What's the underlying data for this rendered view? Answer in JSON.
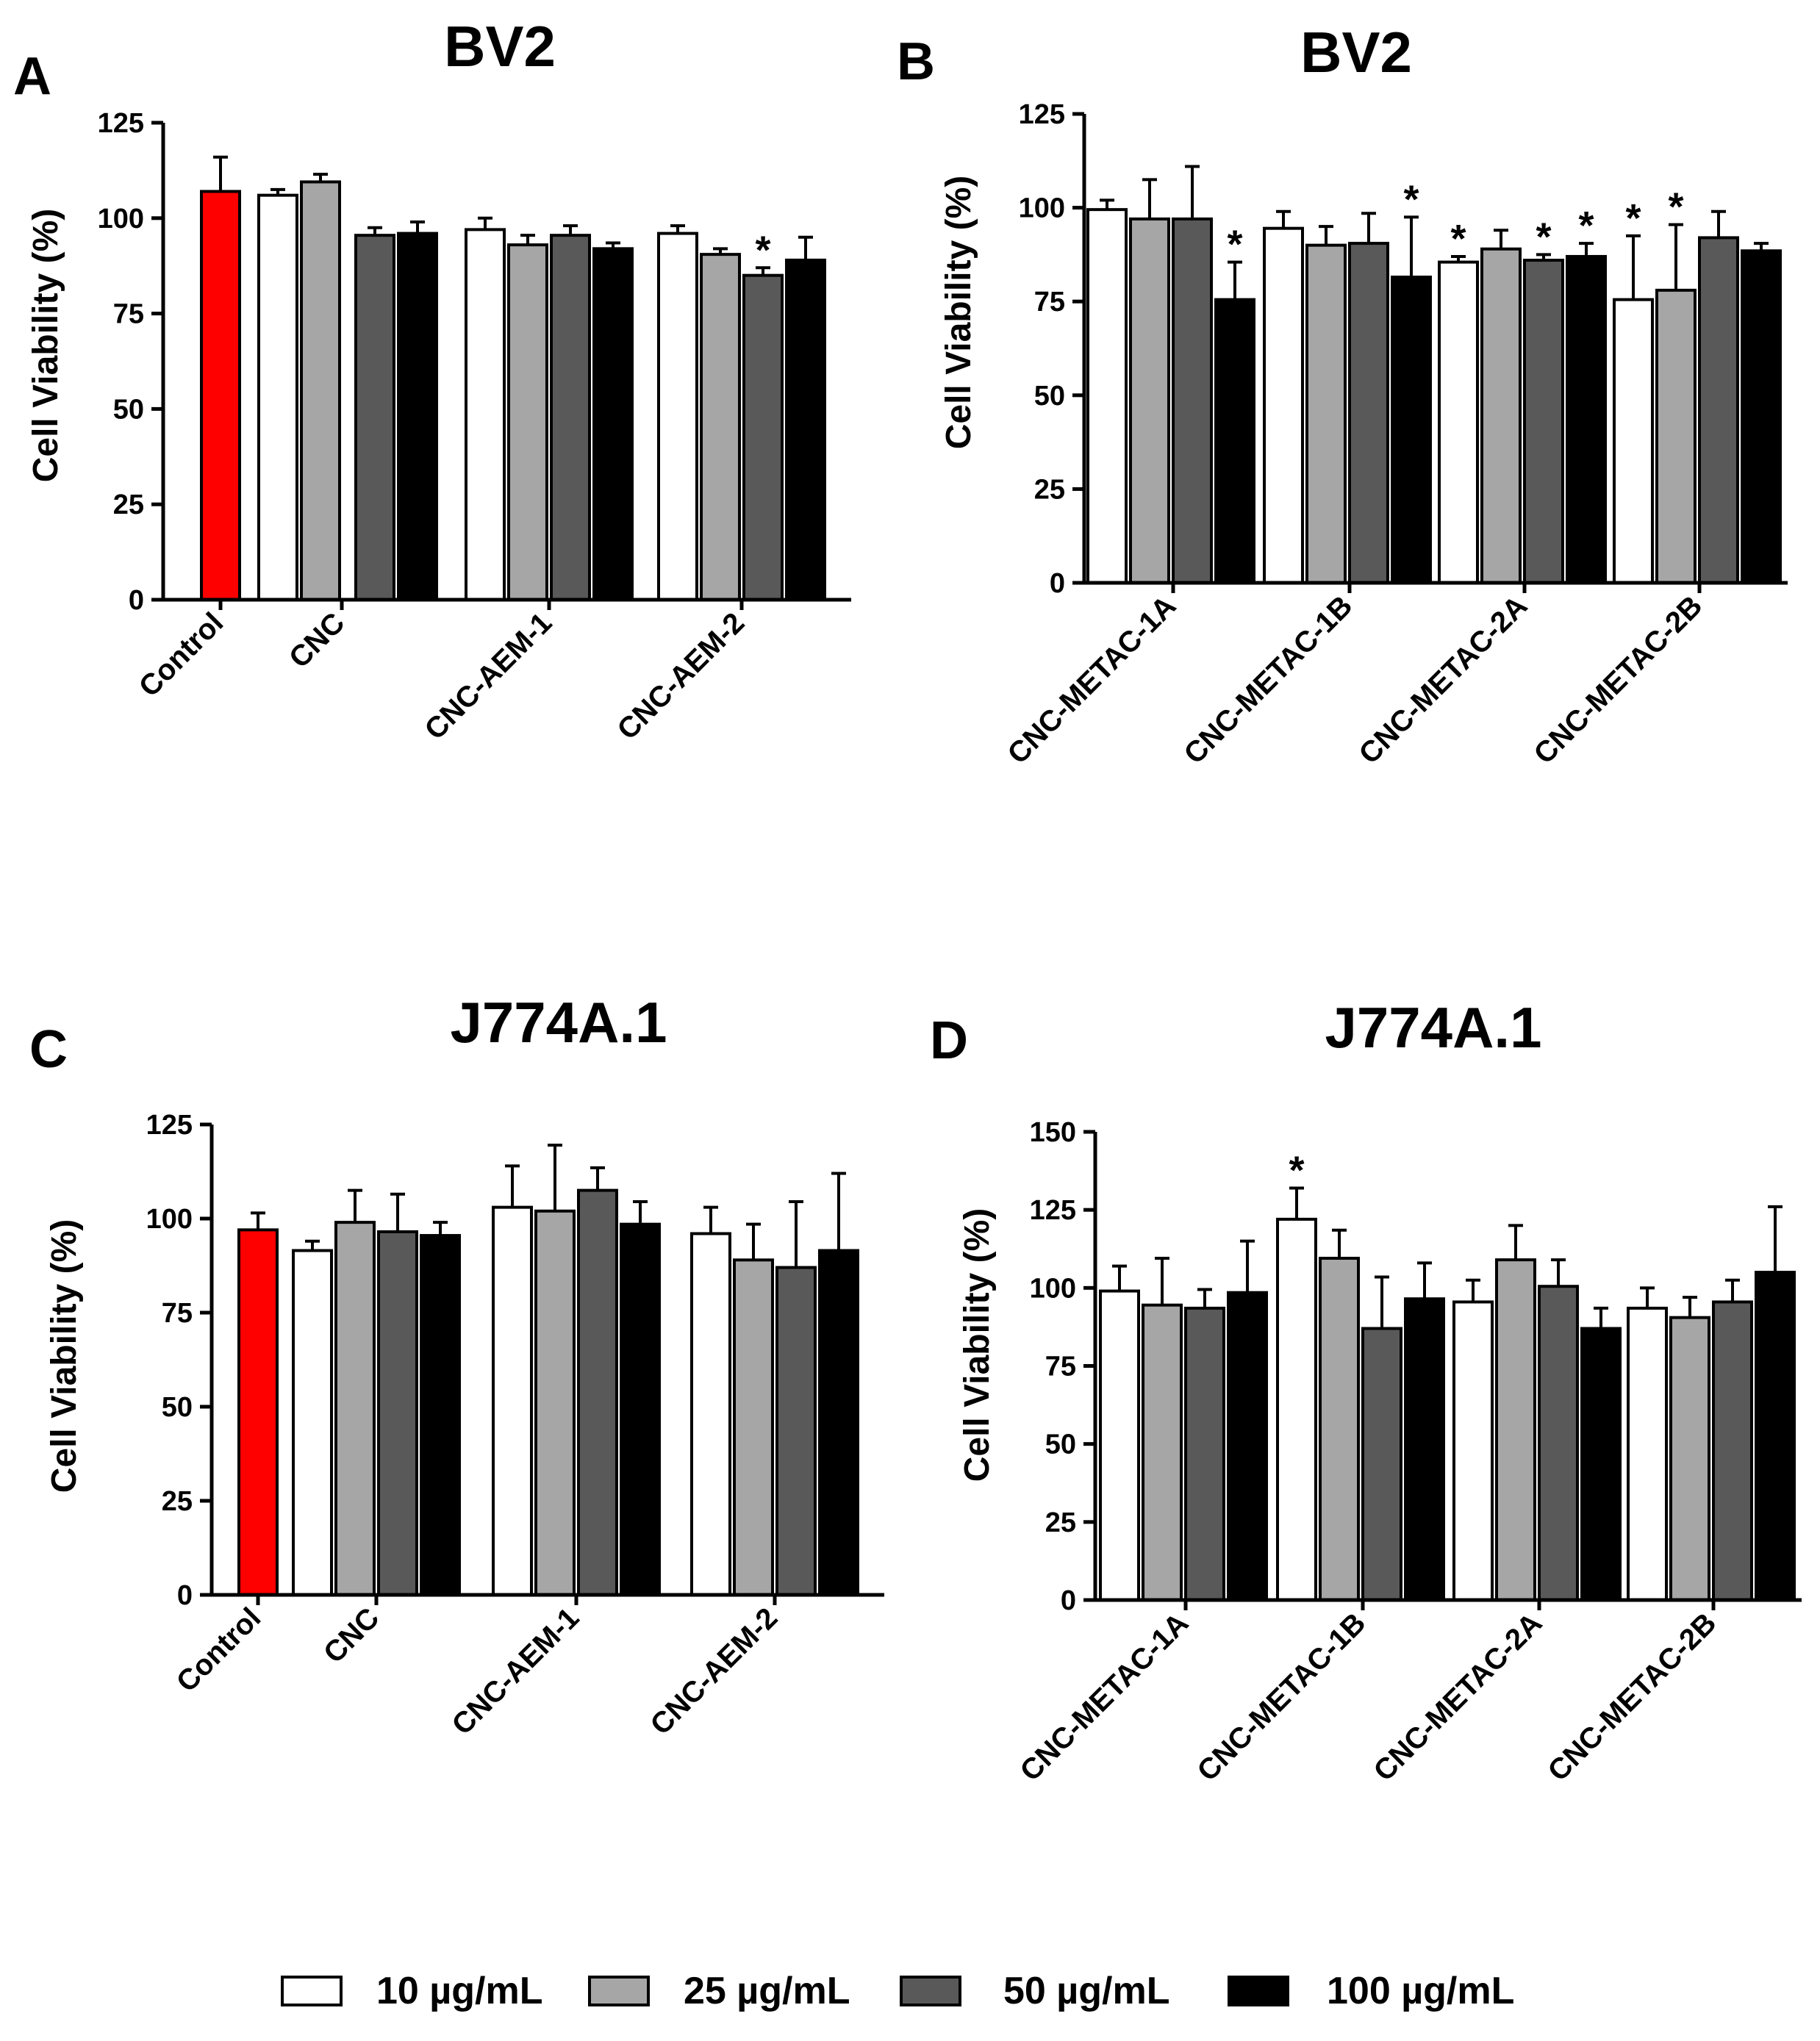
{
  "chart_data": [
    {
      "id": "A",
      "type": "bar",
      "panel_label": "A",
      "title": "BV2",
      "xlabel": "",
      "ylabel": "Cell Viability (%)",
      "ylim": [
        0,
        125
      ],
      "yticks": [
        0,
        25,
        50,
        75,
        100,
        125
      ],
      "groups": [
        {
          "label": "Control",
          "bars": [
            {
              "series": "control",
              "value": 107,
              "err": 9,
              "star": false
            }
          ]
        },
        {
          "label": "CNC",
          "bars": [
            {
              "series": "s10",
              "value": 106,
              "err": 1.5,
              "star": false
            },
            {
              "series": "s25",
              "value": 109.5,
              "err": 2,
              "star": false
            },
            {
              "series": "s50",
              "value": 95.5,
              "err": 2,
              "star": false
            },
            {
              "series": "s100",
              "value": 96,
              "err": 3,
              "star": false
            }
          ]
        },
        {
          "label": "CNC-AEM-1",
          "bars": [
            {
              "series": "s10",
              "value": 97,
              "err": 3,
              "star": false
            },
            {
              "series": "s25",
              "value": 93,
              "err": 2.5,
              "star": false
            },
            {
              "series": "s50",
              "value": 95.5,
              "err": 2.5,
              "star": false
            },
            {
              "series": "s100",
              "value": 92,
              "err": 1.5,
              "star": false
            }
          ]
        },
        {
          "label": "CNC-AEM-2",
          "bars": [
            {
              "series": "s10",
              "value": 96,
              "err": 2,
              "star": false
            },
            {
              "series": "s25",
              "value": 90.5,
              "err": 1.5,
              "star": false
            },
            {
              "series": "s50",
              "value": 85,
              "err": 2,
              "star": true
            },
            {
              "series": "s100",
              "value": 89,
              "err": 6,
              "star": false
            }
          ]
        }
      ]
    },
    {
      "id": "B",
      "type": "bar",
      "panel_label": "B",
      "title": "BV2",
      "xlabel": "",
      "ylabel": "Cell Viability (%)",
      "ylim": [
        0,
        125
      ],
      "yticks": [
        0,
        25,
        50,
        75,
        100,
        125
      ],
      "groups": [
        {
          "label": "CNC-METAC-1A",
          "bars": [
            {
              "series": "s10",
              "value": 99.5,
              "err": 2.5,
              "star": false
            },
            {
              "series": "s25",
              "value": 97,
              "err": 10.5,
              "star": false
            },
            {
              "series": "s50",
              "value": 97,
              "err": 14,
              "star": false
            },
            {
              "series": "s100",
              "value": 75.5,
              "err": 10,
              "star": true
            }
          ]
        },
        {
          "label": "CNC-METAC-1B",
          "bars": [
            {
              "series": "s10",
              "value": 94.5,
              "err": 4.5,
              "star": false
            },
            {
              "series": "s25",
              "value": 90,
              "err": 5,
              "star": false
            },
            {
              "series": "s50",
              "value": 90.5,
              "err": 8,
              "star": false
            },
            {
              "series": "s100",
              "value": 81.5,
              "err": 16,
              "star": true
            }
          ]
        },
        {
          "label": "CNC-METAC-2A",
          "bars": [
            {
              "series": "s10",
              "value": 85.5,
              "err": 1.5,
              "star": true
            },
            {
              "series": "s25",
              "value": 89,
              "err": 5,
              "star": false
            },
            {
              "series": "s50",
              "value": 86,
              "err": 1.5,
              "star": true
            },
            {
              "series": "s100",
              "value": 87,
              "err": 3.5,
              "star": true
            }
          ]
        },
        {
          "label": "CNC-METAC-2B",
          "bars": [
            {
              "series": "s10",
              "value": 75.5,
              "err": 17,
              "star": true
            },
            {
              "series": "s25",
              "value": 78,
              "err": 17.5,
              "star": true
            },
            {
              "series": "s50",
              "value": 92,
              "err": 7,
              "star": false
            },
            {
              "series": "s100",
              "value": 88.5,
              "err": 2,
              "star": false
            }
          ]
        }
      ]
    },
    {
      "id": "C",
      "type": "bar",
      "panel_label": "C",
      "title": "J774A.1",
      "xlabel": "",
      "ylabel": "Cell Viability (%)",
      "ylim": [
        0,
        125
      ],
      "yticks": [
        0,
        25,
        50,
        75,
        100,
        125
      ],
      "groups": [
        {
          "label": "Control",
          "bars": [
            {
              "series": "control",
              "value": 97,
              "err": 4.5,
              "star": false
            }
          ]
        },
        {
          "label": "CNC",
          "bars": [
            {
              "series": "s10",
              "value": 91.5,
              "err": 2.5,
              "star": false
            },
            {
              "series": "s25",
              "value": 99,
              "err": 8.5,
              "star": false
            },
            {
              "series": "s50",
              "value": 96.5,
              "err": 10,
              "star": false
            },
            {
              "series": "s100",
              "value": 95.5,
              "err": 3.5,
              "star": false
            }
          ]
        },
        {
          "label": "CNC-AEM-1",
          "bars": [
            {
              "series": "s10",
              "value": 103,
              "err": 11,
              "star": false
            },
            {
              "series": "s25",
              "value": 102,
              "err": 17.5,
              "star": false
            },
            {
              "series": "s50",
              "value": 107.5,
              "err": 6,
              "star": false
            },
            {
              "series": "s100",
              "value": 98.5,
              "err": 6,
              "star": false
            }
          ]
        },
        {
          "label": "CNC-AEM-2",
          "bars": [
            {
              "series": "s10",
              "value": 96,
              "err": 7,
              "star": false
            },
            {
              "series": "s25",
              "value": 89,
              "err": 9.5,
              "star": false
            },
            {
              "series": "s50",
              "value": 87,
              "err": 17.5,
              "star": false
            },
            {
              "series": "s100",
              "value": 91.5,
              "err": 20.5,
              "star": false
            }
          ]
        }
      ]
    },
    {
      "id": "D",
      "type": "bar",
      "panel_label": "D",
      "title": "J774A.1",
      "xlabel": "",
      "ylabel": "Cell Viability (%)",
      "ylim": [
        0,
        150
      ],
      "yticks": [
        0,
        25,
        50,
        75,
        100,
        125,
        150
      ],
      "groups": [
        {
          "label": "CNC-METAC-1A",
          "bars": [
            {
              "series": "s10",
              "value": 99,
              "err": 8,
              "star": false
            },
            {
              "series": "s25",
              "value": 94.5,
              "err": 15,
              "star": false
            },
            {
              "series": "s50",
              "value": 93.5,
              "err": 6,
              "star": false
            },
            {
              "series": "s100",
              "value": 98.5,
              "err": 16.5,
              "star": false
            }
          ]
        },
        {
          "label": "CNC-METAC-1B",
          "bars": [
            {
              "series": "s10",
              "value": 122,
              "err": 10,
              "star": true
            },
            {
              "series": "s25",
              "value": 109.5,
              "err": 9,
              "star": false
            },
            {
              "series": "s50",
              "value": 87,
              "err": 16.5,
              "star": false
            },
            {
              "series": "s100",
              "value": 96.5,
              "err": 11.5,
              "star": false
            }
          ]
        },
        {
          "label": "CNC-METAC-2A",
          "bars": [
            {
              "series": "s10",
              "value": 95.5,
              "err": 7,
              "star": false
            },
            {
              "series": "s25",
              "value": 109,
              "err": 11,
              "star": false
            },
            {
              "series": "s50",
              "value": 100.5,
              "err": 8.5,
              "star": false
            },
            {
              "series": "s100",
              "value": 87,
              "err": 6.5,
              "star": false
            }
          ]
        },
        {
          "label": "CNC-METAC-2B",
          "bars": [
            {
              "series": "s10",
              "value": 93.5,
              "err": 6.5,
              "star": false
            },
            {
              "series": "s25",
              "value": 90.5,
              "err": 6.5,
              "star": false
            },
            {
              "series": "s50",
              "value": 95.5,
              "err": 7,
              "star": false
            },
            {
              "series": "s100",
              "value": 105,
              "err": 21,
              "star": false
            }
          ]
        }
      ]
    }
  ],
  "series_styles": {
    "control": "#ff0000",
    "s10": "#ffffff",
    "s25": "#a6a6a6",
    "s50": "#595959",
    "s100": "#000000"
  },
  "star_symbol": "*",
  "legend": {
    "items": [
      {
        "series": "s10",
        "label": "10 µg/mL"
      },
      {
        "series": "s25",
        "label": "25 µg/mL"
      },
      {
        "series": "s50",
        "label": "50 µg/mL"
      },
      {
        "series": "s100",
        "label": "100 µg/mL"
      }
    ]
  }
}
